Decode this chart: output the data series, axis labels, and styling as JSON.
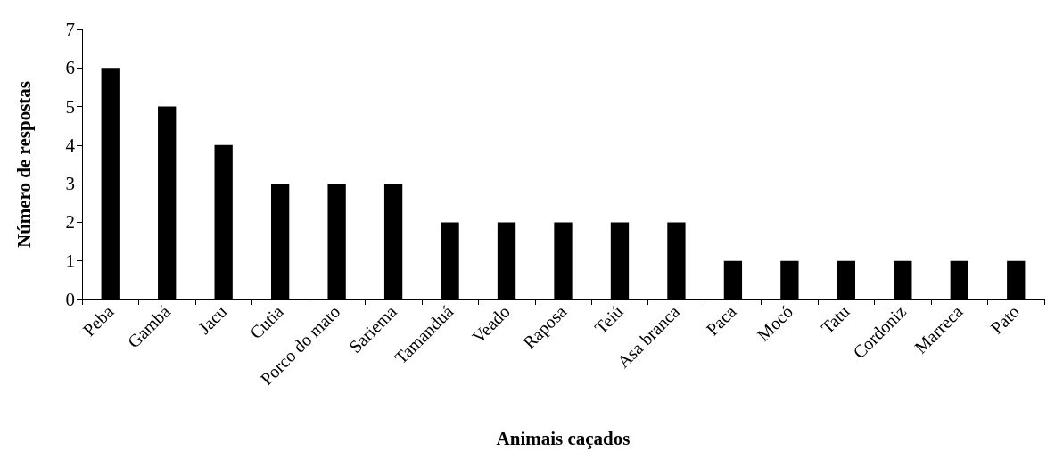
{
  "chart_data": {
    "type": "bar",
    "xlabel": "Animais caçados",
    "ylabel": "Número de respostas",
    "categories": [
      "Peba",
      "Gambá",
      "Jacu",
      "Cutia",
      "Porco do mato",
      "Sariema",
      "Tamanduá",
      "Veado",
      "Raposa",
      "Teiú",
      "Asa branca",
      "Paca",
      "Mocó",
      "Tatu",
      "Cordoniz",
      "Marreca",
      "Pato"
    ],
    "values": [
      6,
      5,
      4,
      3,
      3,
      3,
      2,
      2,
      2,
      2,
      2,
      1,
      1,
      1,
      1,
      1,
      1
    ],
    "color": "#000000",
    "ylim": [
      0,
      7
    ],
    "yticks": [
      0,
      1,
      2,
      3,
      4,
      5,
      6,
      7
    ],
    "grid": false
  }
}
